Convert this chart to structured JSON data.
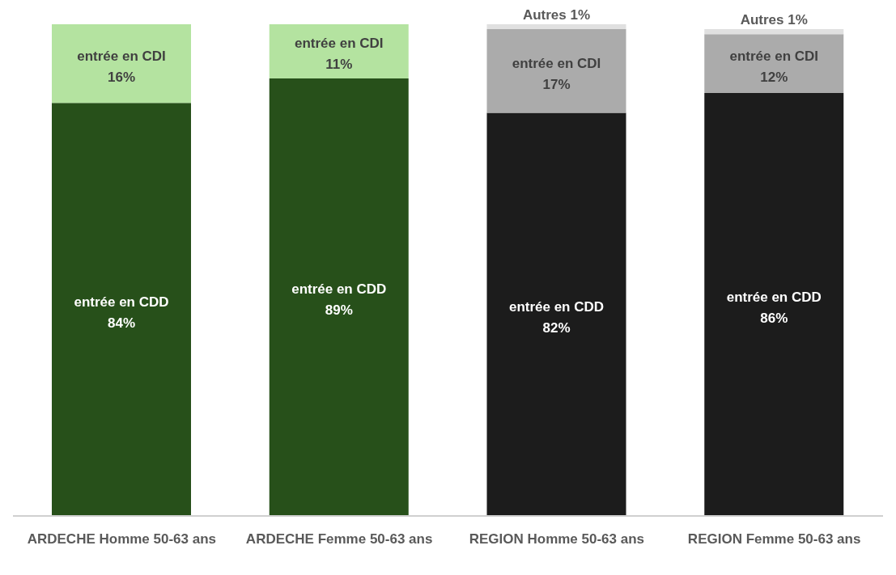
{
  "chart_data": {
    "type": "bar",
    "stacked": true,
    "categories": [
      "ARDECHE Homme 50-63 ans",
      "ARDECHE Femme 50-63 ans",
      "REGION Homme 50-63 ans",
      "REGION Femme 50-63 ans"
    ],
    "series": [
      {
        "name": "entrée en CDD",
        "colors": [
          "#27501a",
          "#27501a",
          "#1c1c1c",
          "#1c1c1c"
        ],
        "values": [
          84,
          89,
          82,
          86
        ],
        "value_labels": [
          "84%",
          "89%",
          "82%",
          "86%"
        ]
      },
      {
        "name": "entrée en CDI",
        "colors": [
          "#b4e3a0",
          "#b4e3a0",
          "#ababab",
          "#ababab"
        ],
        "values": [
          16,
          11,
          17,
          12
        ],
        "value_labels": [
          "16%",
          "11%",
          "17%",
          "12%"
        ]
      },
      {
        "name": "Autres",
        "colors": [
          "#e0e0e0",
          "#e0e0e0",
          "#e0e0e0",
          "#e0e0e0"
        ],
        "values": [
          null,
          null,
          1,
          1
        ],
        "value_labels": [
          null,
          null,
          "1%",
          "1%"
        ]
      }
    ],
    "grid": false,
    "legend": false
  }
}
